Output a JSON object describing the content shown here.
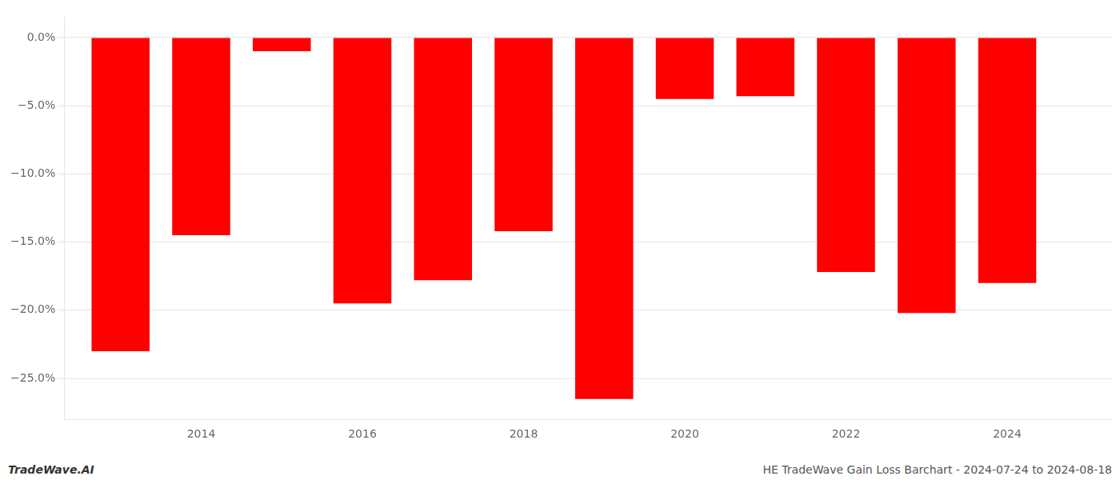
{
  "chart_data": {
    "type": "bar",
    "x": [
      2013,
      2014,
      2015,
      2016,
      2017,
      2018,
      2019,
      2020,
      2021,
      2022,
      2023,
      2024
    ],
    "values": [
      -23.0,
      -14.5,
      -1.0,
      -19.5,
      -17.8,
      -14.2,
      -26.5,
      -4.5,
      -4.3,
      -17.2,
      -20.2,
      -18.0
    ],
    "color": "#ff0000",
    "xlim": [
      2012.3,
      2025.3
    ],
    "xticks": [
      2014,
      2016,
      2018,
      2020,
      2022,
      2024
    ],
    "ylim": [
      -28,
      1.5
    ],
    "yticks": [
      {
        "value": 0.0,
        "label": "0.0%"
      },
      {
        "value": -5.0,
        "label": "−5.0%"
      },
      {
        "value": -10.0,
        "label": "−10.0%"
      },
      {
        "value": -15.0,
        "label": "−15.0%"
      },
      {
        "value": -20.0,
        "label": "−20.0%"
      },
      {
        "value": -25.0,
        "label": "−25.0%"
      }
    ],
    "grid": true,
    "annotations": [
      "TradeWave.AI",
      "HE TradeWave Gain Loss Barchart - 2024-07-24 to 2024-08-18"
    ]
  }
}
